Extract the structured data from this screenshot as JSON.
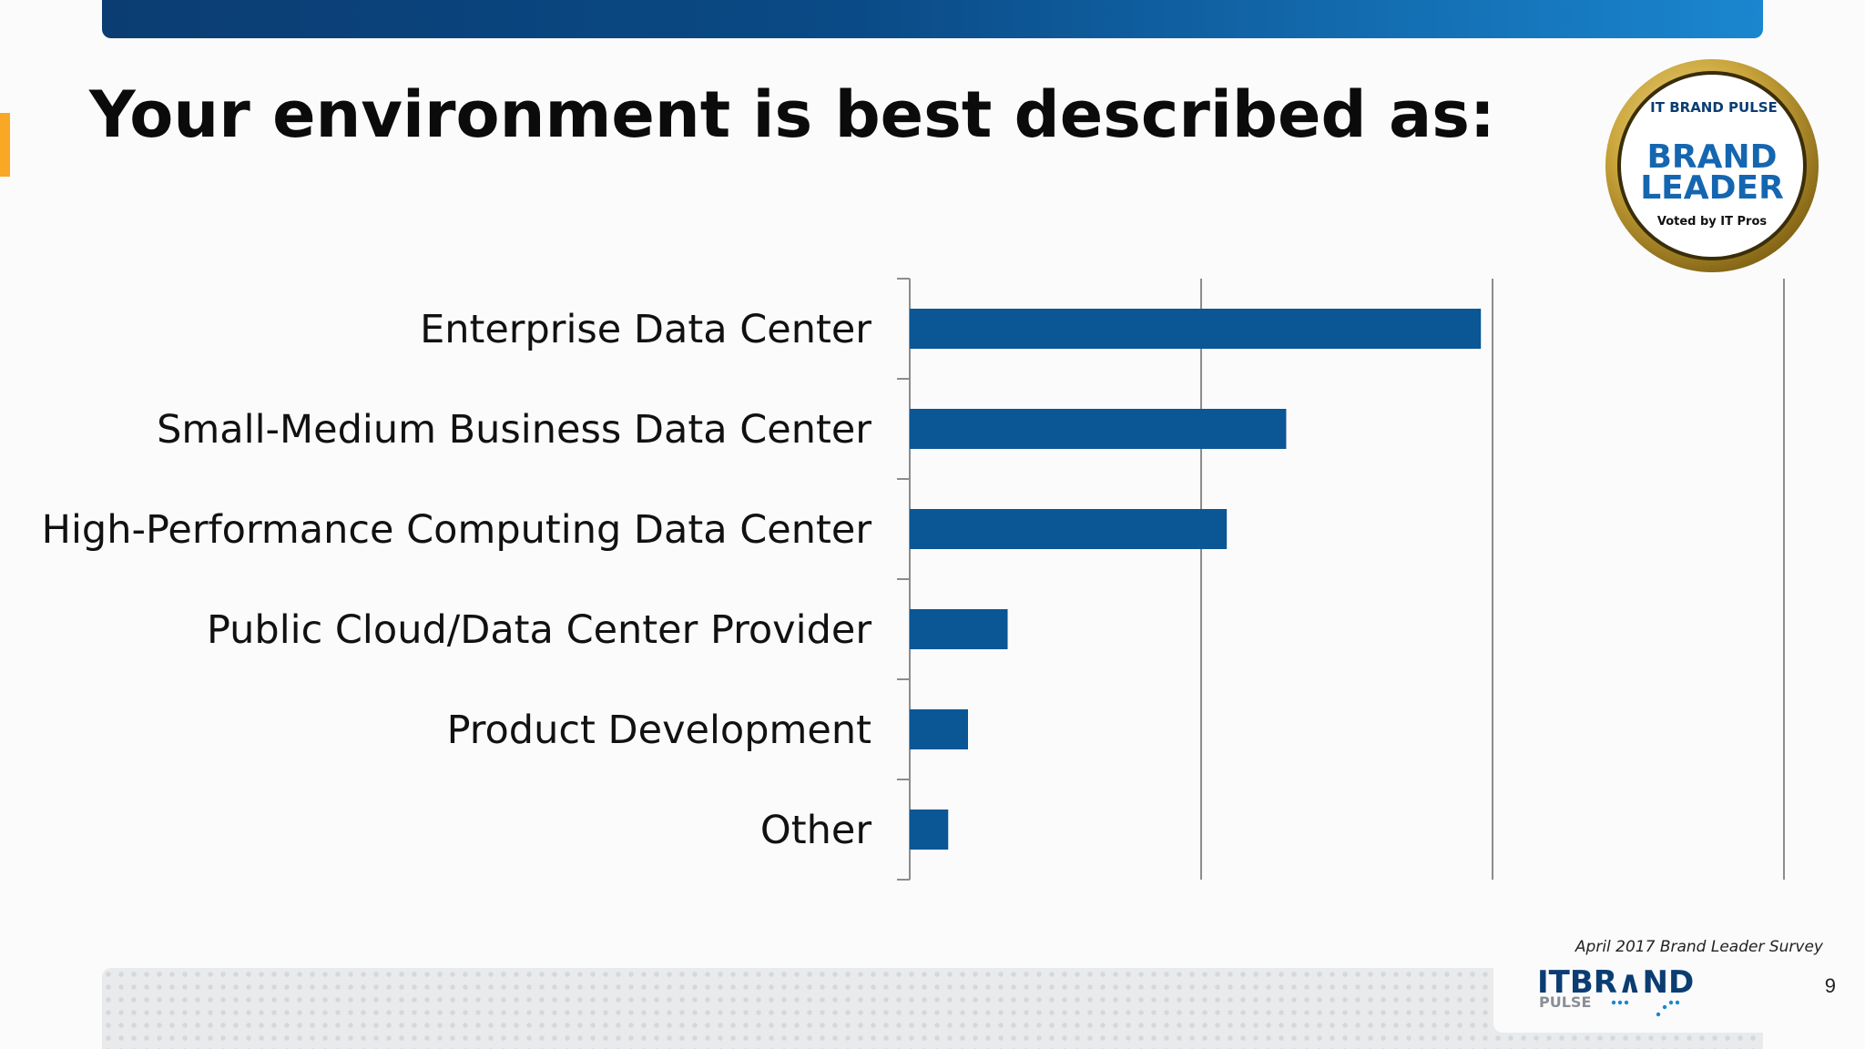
{
  "slide": {
    "title": "Your environment is best described as:",
    "survey_note": "April 2017 Brand Leader Survey",
    "page_number": "9"
  },
  "badge": {
    "top_text": "IT BRAND PULSE",
    "main_line1": "BRAND",
    "main_line2": "LEADER",
    "bottom_text": "Voted by IT Pros"
  },
  "footer_logo": {
    "line1": "ITBR∧ND",
    "line2": "PULSE"
  },
  "colors": {
    "bar": "#0b5694",
    "top_bar_start": "#0b3d72",
    "top_bar_end": "#1a86cf",
    "accent": "#f8a825",
    "badge_gold": "#c9a43a"
  },
  "chart_data": {
    "type": "bar",
    "orientation": "horizontal",
    "categories": [
      "Enterprise Data Center",
      "Small-Medium Business Data Center",
      "High-Performance Computing Data Center",
      "Public Cloud/Data Center Provider",
      "Product Development",
      "Other"
    ],
    "values": [
      49,
      32.3,
      27.2,
      8.4,
      5,
      3.3
    ],
    "xlim": [
      0,
      75
    ],
    "gridlines": [
      0,
      25,
      50,
      75
    ],
    "x_tick_labels_shown": false,
    "title": "",
    "xlabel": "",
    "ylabel": "",
    "legend": "none"
  }
}
